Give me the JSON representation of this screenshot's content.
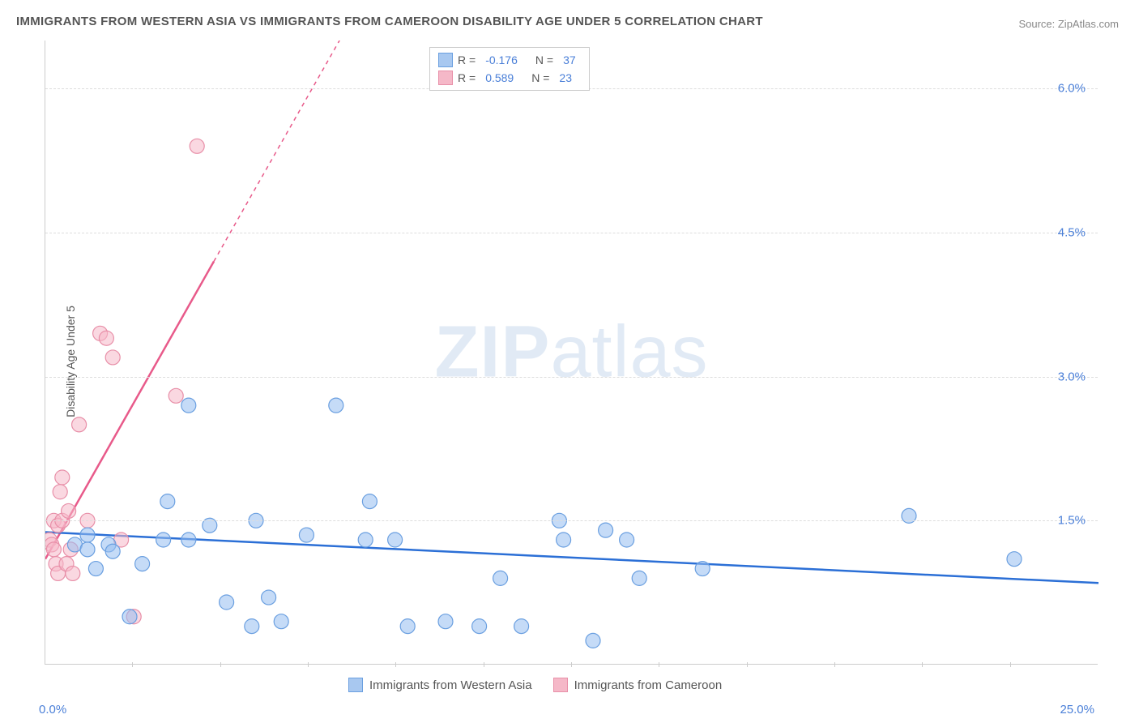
{
  "chart": {
    "title": "IMMIGRANTS FROM WESTERN ASIA VS IMMIGRANTS FROM CAMEROON DISABILITY AGE UNDER 5 CORRELATION CHART",
    "source": "Source: ZipAtlas.com",
    "watermark_bold": "ZIP",
    "watermark_light": "atlas",
    "y_axis_label": "Disability Age Under 5",
    "type": "scatter",
    "background_color": "#ffffff",
    "grid_color": "#dddddd",
    "axis_color": "#cccccc",
    "text_color": "#555555",
    "value_color": "#4a7fd8",
    "xlim": [
      0,
      25
    ],
    "ylim": [
      0,
      6.5
    ],
    "x_ticks": [
      0,
      25
    ],
    "x_tick_labels": [
      "0.0%",
      "25.0%"
    ],
    "x_minor_ticks": [
      2.08,
      4.17,
      6.25,
      8.33,
      10.42,
      12.5,
      14.58,
      16.67,
      18.75,
      20.83,
      22.92
    ],
    "y_gridlines": [
      1.5,
      3.0,
      4.5,
      6.0
    ],
    "y_tick_labels": [
      "1.5%",
      "3.0%",
      "4.5%",
      "6.0%"
    ],
    "legend": {
      "rows": [
        {
          "swatch_fill": "#a8c8f0",
          "swatch_border": "#6a9fe0",
          "r_label": "R =",
          "r_value": "-0.176",
          "n_label": "N =",
          "n_value": "37"
        },
        {
          "swatch_fill": "#f5b8c8",
          "swatch_border": "#e88fa8",
          "r_label": "R =",
          "r_value": "0.589",
          "n_label": "N =",
          "n_value": "23"
        }
      ]
    },
    "bottom_legend": [
      {
        "swatch_fill": "#a8c8f0",
        "swatch_border": "#6a9fe0",
        "label": "Immigrants from Western Asia"
      },
      {
        "swatch_fill": "#f5b8c8",
        "swatch_border": "#e88fa8",
        "label": "Immigrants from Cameroon"
      }
    ],
    "series_blue": {
      "color_fill": "rgba(150,190,240,0.55)",
      "color_stroke": "#6a9fe0",
      "marker_radius": 9,
      "trend_color": "#2b6fd6",
      "trend_width": 2.5,
      "trend": [
        [
          0,
          1.38
        ],
        [
          25,
          0.85
        ]
      ],
      "points": [
        [
          0.7,
          1.25
        ],
        [
          1.0,
          1.2
        ],
        [
          1.5,
          1.25
        ],
        [
          1.6,
          1.18
        ],
        [
          1.2,
          1.0
        ],
        [
          1.0,
          1.35
        ],
        [
          2.3,
          1.05
        ],
        [
          2.0,
          0.5
        ],
        [
          2.9,
          1.7
        ],
        [
          2.8,
          1.3
        ],
        [
          3.4,
          1.3
        ],
        [
          3.4,
          2.7
        ],
        [
          3.9,
          1.45
        ],
        [
          4.3,
          0.65
        ],
        [
          4.9,
          0.4
        ],
        [
          5.0,
          1.5
        ],
        [
          5.3,
          0.7
        ],
        [
          5.6,
          0.45
        ],
        [
          6.2,
          1.35
        ],
        [
          6.9,
          2.7
        ],
        [
          7.6,
          1.3
        ],
        [
          7.7,
          1.7
        ],
        [
          8.3,
          1.3
        ],
        [
          8.6,
          0.4
        ],
        [
          9.5,
          0.45
        ],
        [
          10.3,
          0.4
        ],
        [
          10.8,
          0.9
        ],
        [
          11.3,
          0.4
        ],
        [
          12.2,
          1.5
        ],
        [
          12.3,
          1.3
        ],
        [
          13.0,
          0.25
        ],
        [
          13.3,
          1.4
        ],
        [
          13.8,
          1.3
        ],
        [
          14.1,
          0.9
        ],
        [
          15.6,
          1.0
        ],
        [
          20.5,
          1.55
        ],
        [
          23.0,
          1.1
        ]
      ]
    },
    "series_pink": {
      "color_fill": "rgba(245,184,200,0.55)",
      "color_stroke": "#e88fa8",
      "marker_radius": 9,
      "trend_color": "#e85a8a",
      "trend_width": 2.5,
      "trend_solid_end_x": 4.0,
      "trend": [
        [
          0,
          1.1
        ],
        [
          4.0,
          4.2
        ],
        [
          7.5,
          6.9
        ]
      ],
      "points": [
        [
          0.1,
          1.3
        ],
        [
          0.15,
          1.25
        ],
        [
          0.2,
          1.2
        ],
        [
          0.2,
          1.5
        ],
        [
          0.25,
          1.05
        ],
        [
          0.3,
          0.95
        ],
        [
          0.3,
          1.45
        ],
        [
          0.35,
          1.8
        ],
        [
          0.4,
          1.5
        ],
        [
          0.4,
          1.95
        ],
        [
          0.5,
          1.05
        ],
        [
          0.55,
          1.6
        ],
        [
          0.6,
          1.2
        ],
        [
          0.65,
          0.95
        ],
        [
          0.8,
          2.5
        ],
        [
          1.0,
          1.5
        ],
        [
          1.3,
          3.45
        ],
        [
          1.45,
          3.4
        ],
        [
          1.6,
          3.2
        ],
        [
          1.8,
          1.3
        ],
        [
          2.1,
          0.5
        ],
        [
          3.1,
          2.8
        ],
        [
          3.6,
          5.4
        ]
      ]
    }
  }
}
